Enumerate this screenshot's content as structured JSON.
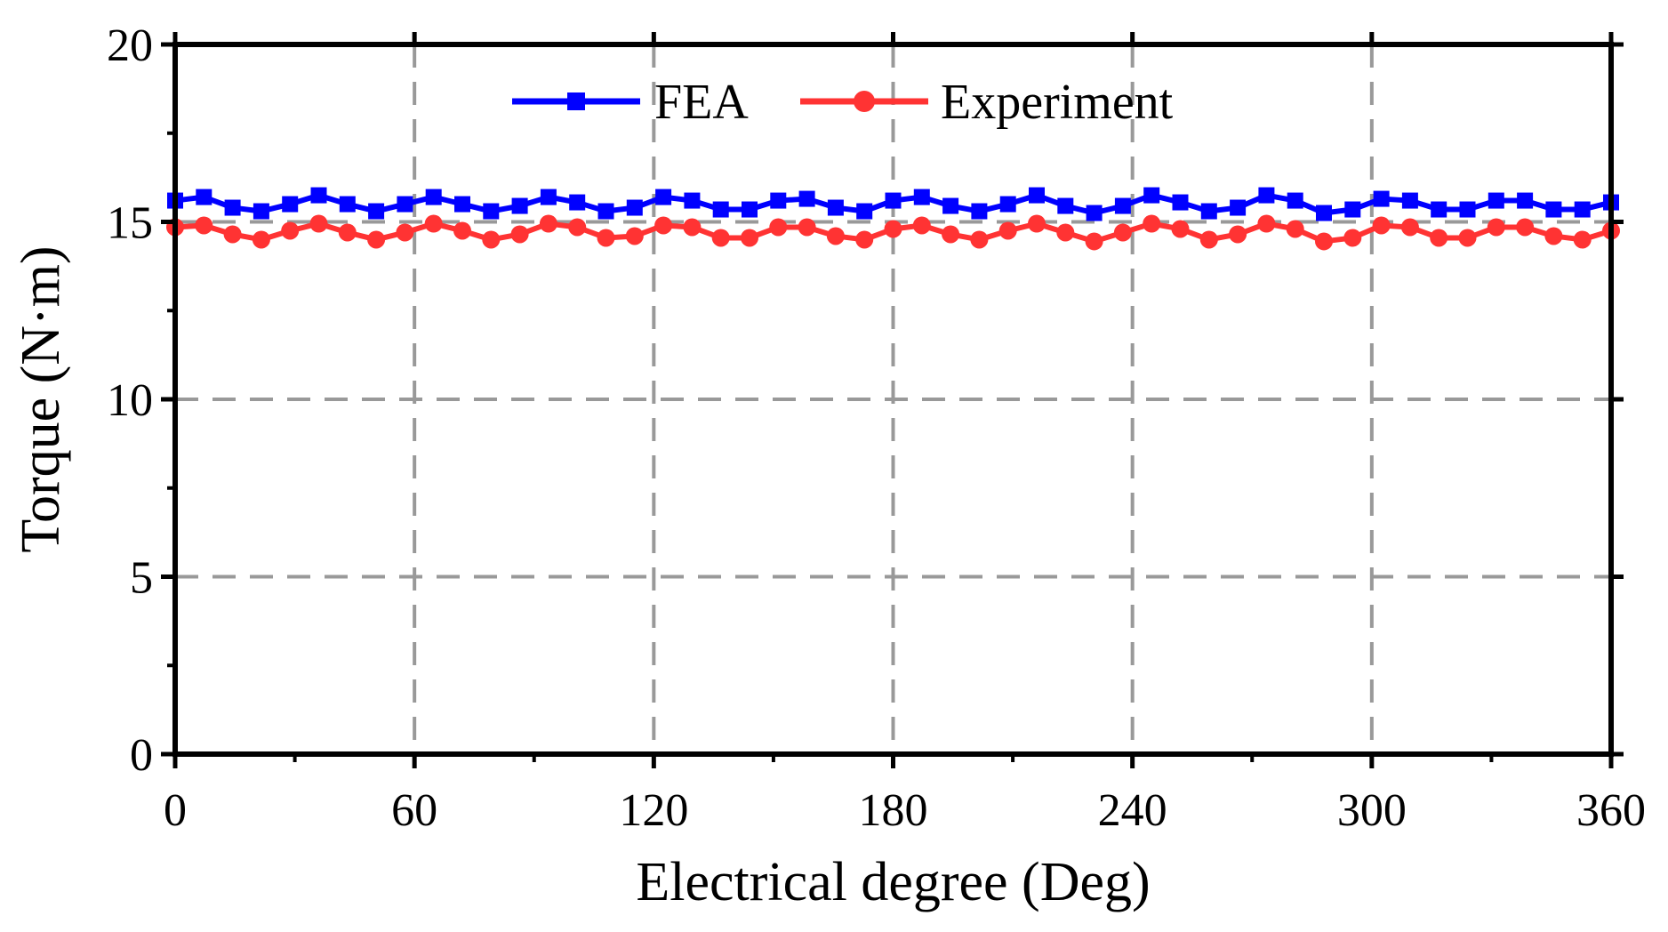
{
  "chart_data": {
    "type": "line",
    "title": "",
    "xlabel": "Electrical degree (Deg)",
    "ylabel": "Torque (N·m)",
    "xlim": [
      0,
      360
    ],
    "ylim": [
      0,
      20
    ],
    "xticks": [
      0,
      60,
      120,
      180,
      240,
      300,
      360
    ],
    "yticks": [
      0,
      5,
      10,
      15,
      20
    ],
    "grid": "dashed",
    "legend_position": "top-center",
    "x": [
      0,
      7.2,
      14.4,
      21.6,
      28.8,
      36,
      43.2,
      50.4,
      57.6,
      64.8,
      72,
      79.2,
      86.4,
      93.6,
      100.8,
      108,
      115.2,
      122.4,
      129.6,
      136.8,
      144,
      151.2,
      158.4,
      165.6,
      172.8,
      180,
      187.2,
      194.4,
      201.6,
      208.8,
      216,
      223.2,
      230.4,
      237.6,
      244.8,
      252,
      259.2,
      266.4,
      273.6,
      280.8,
      288,
      295.2,
      302.4,
      309.6,
      316.8,
      324,
      331.2,
      338.4,
      345.6,
      352.8,
      360
    ],
    "series": [
      {
        "name": "FEA",
        "color": "#0000ff",
        "marker": "square",
        "values": [
          15.6,
          15.7,
          15.4,
          15.3,
          15.5,
          15.75,
          15.5,
          15.3,
          15.5,
          15.7,
          15.5,
          15.3,
          15.45,
          15.7,
          15.55,
          15.3,
          15.4,
          15.7,
          15.6,
          15.35,
          15.35,
          15.6,
          15.65,
          15.4,
          15.3,
          15.6,
          15.7,
          15.45,
          15.3,
          15.5,
          15.75,
          15.45,
          15.25,
          15.45,
          15.75,
          15.55,
          15.3,
          15.4,
          15.75,
          15.6,
          15.25,
          15.35,
          15.65,
          15.6,
          15.35,
          15.35,
          15.6,
          15.6,
          15.35,
          15.35,
          15.55
        ]
      },
      {
        "name": "Experiment",
        "color": "#ff3333",
        "marker": "circle",
        "values": [
          14.85,
          14.9,
          14.65,
          14.5,
          14.75,
          14.95,
          14.7,
          14.5,
          14.7,
          14.95,
          14.75,
          14.5,
          14.65,
          14.95,
          14.85,
          14.55,
          14.6,
          14.9,
          14.85,
          14.55,
          14.55,
          14.85,
          14.85,
          14.6,
          14.5,
          14.8,
          14.9,
          14.65,
          14.5,
          14.75,
          14.95,
          14.7,
          14.45,
          14.7,
          14.95,
          14.8,
          14.5,
          14.65,
          14.95,
          14.8,
          14.45,
          14.55,
          14.9,
          14.85,
          14.55,
          14.55,
          14.85,
          14.85,
          14.6,
          14.5,
          14.75
        ]
      }
    ]
  }
}
